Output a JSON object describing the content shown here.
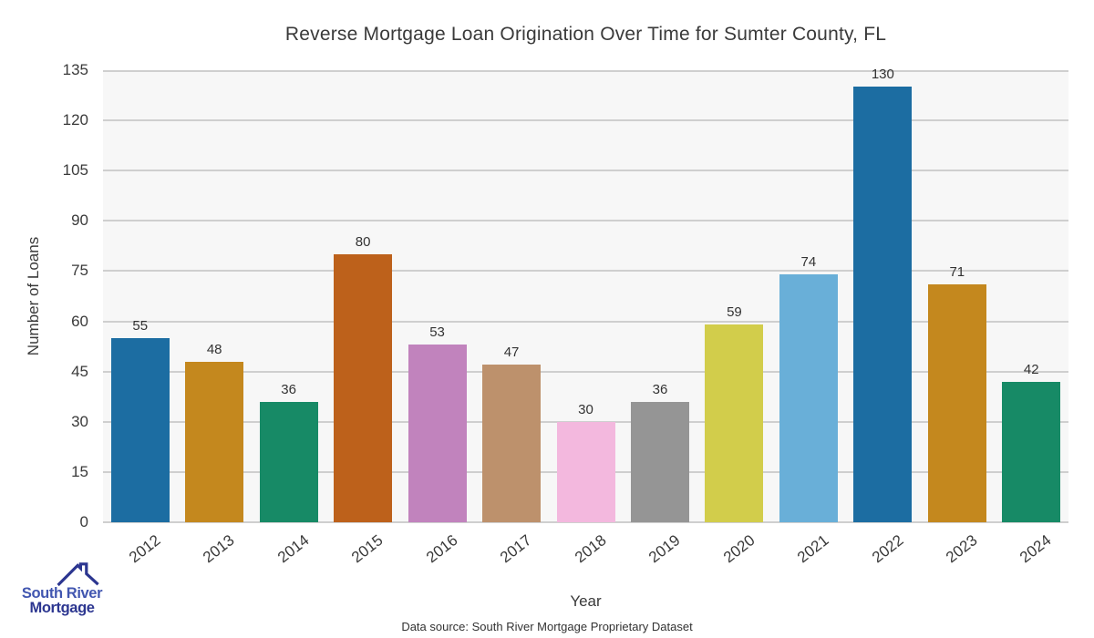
{
  "title": "Reverse Mortgage Loan Origination Over Time for Sumter County, FL",
  "axes": {
    "x_label": "Year",
    "y_label": "Number of Loans"
  },
  "chart_data": {
    "type": "bar",
    "categories": [
      "2012",
      "2013",
      "2014",
      "2015",
      "2016",
      "2017",
      "2018",
      "2019",
      "2020",
      "2021",
      "2022",
      "2023",
      "2024"
    ],
    "values": [
      55,
      48,
      36,
      80,
      53,
      47,
      30,
      36,
      59,
      74,
      130,
      71,
      42
    ],
    "bar_colors": [
      "#1c6da2",
      "#c4881e",
      "#178a66",
      "#bd611b",
      "#c183bd",
      "#bd916c",
      "#f3b8de",
      "#959595",
      "#d2cd4b",
      "#69afd8",
      "#1c6da2",
      "#c4881e",
      "#178a66"
    ],
    "title": "Reverse Mortgage Loan Origination Over Time for Sumter County, FL",
    "xlabel": "Year",
    "ylabel": "Number of Loans",
    "ylim": [
      0,
      135
    ],
    "ytick_step": 15,
    "grid": "horizontal",
    "value_labels_shown": true,
    "legend": "none",
    "plot_bg_color": "#f7f7f7",
    "grid_color": "#cfcfcf"
  },
  "logo": {
    "name_line1": "South River",
    "name_line2": "Mortgage",
    "line1_color": "#4156b0",
    "line2_color": "#2c3690",
    "roof_icon_color": "#2c3690"
  },
  "footer": {
    "source_note": "Data source: South River Mortgage Proprietary Dataset"
  }
}
